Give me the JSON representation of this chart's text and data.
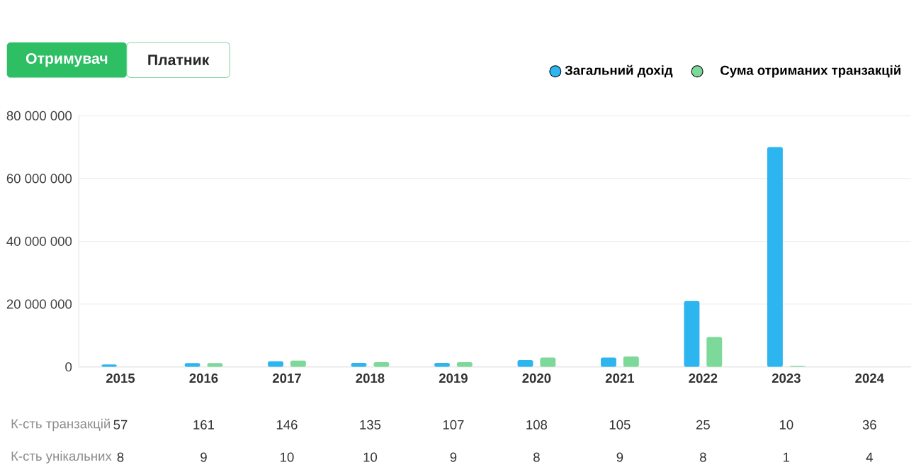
{
  "chart_data": {
    "type": "bar",
    "categories": [
      "2015",
      "2016",
      "2017",
      "2018",
      "2019",
      "2020",
      "2021",
      "2022",
      "2023",
      "2024"
    ],
    "series": [
      {
        "name": "Загальний дохід",
        "color": "#2db5f0",
        "values": [
          800000,
          1200000,
          1800000,
          1300000,
          1300000,
          2200000,
          3000000,
          21000000,
          70000000,
          0
        ]
      },
      {
        "name": "Сума отриманих транзакцій",
        "color": "#7dd99a",
        "values": [
          0,
          1200000,
          2000000,
          1500000,
          1500000,
          3000000,
          3300000,
          9500000,
          300000,
          0
        ]
      }
    ],
    "ylim": [
      0,
      80000000
    ],
    "yticks": [
      {
        "value": 0,
        "label": "0"
      },
      {
        "value": 20000000,
        "label": "20 000 000"
      },
      {
        "value": 40000000,
        "label": "40 000 000"
      },
      {
        "value": 60000000,
        "label": "60 000 000"
      },
      {
        "value": 80000000,
        "label": "80 000 000"
      }
    ],
    "grid": "y",
    "legend": "top right",
    "marker": "circle",
    "annotations": [
      "Отримувач",
      "Платник",
      "К-сть транзакцій",
      "К-сть унікальних",
      "57",
      "161",
      "146",
      "135",
      "107",
      "108",
      "105",
      "25",
      "10",
      "36",
      "8",
      "9",
      "10",
      "10",
      "9",
      "8",
      "9",
      "8",
      "1",
      "4"
    ]
  }
}
